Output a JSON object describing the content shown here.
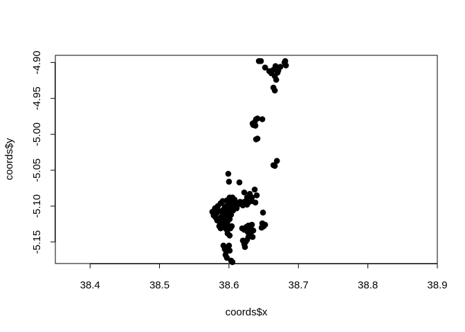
{
  "chart_data": {
    "type": "scatter",
    "title": "",
    "xlabel": "coords$x",
    "ylabel": "coords$y",
    "xlim": [
      38.35,
      38.9
    ],
    "ylim": [
      -5.18,
      -4.89
    ],
    "grid": false,
    "legend": "none",
    "point_color": "#000000",
    "x_ticks": [
      38.4,
      38.5,
      38.6,
      38.7,
      38.8,
      38.9
    ],
    "x_tick_labels": [
      "38.4",
      "38.5",
      "38.6",
      "38.7",
      "38.8",
      "38.9"
    ],
    "y_ticks": [
      -4.9,
      -4.95,
      -5.0,
      -5.05,
      -5.1,
      -5.15
    ],
    "y_tick_labels": [
      "-4.90",
      "-4.95",
      "-5.00",
      "-5.05",
      "-5.10",
      "-5.15"
    ],
    "series": [
      {
        "points": [
          [
            38.643,
            -4.898
          ],
          [
            38.646,
            -4.898
          ],
          [
            38.652,
            -4.907
          ],
          [
            38.658,
            -4.912
          ],
          [
            38.661,
            -4.915
          ],
          [
            38.664,
            -4.91
          ],
          [
            38.667,
            -4.905
          ],
          [
            38.669,
            -4.908
          ],
          [
            38.671,
            -4.911
          ],
          [
            38.674,
            -4.906
          ],
          [
            38.67,
            -4.914
          ],
          [
            38.666,
            -4.919
          ],
          [
            38.668,
            -4.924
          ],
          [
            38.664,
            -4.935
          ],
          [
            38.666,
            -4.939
          ],
          [
            38.68,
            -4.9
          ],
          [
            38.682,
            -4.904
          ],
          [
            38.681,
            -4.898
          ],
          [
            38.634,
            -4.985
          ],
          [
            38.636,
            -4.986
          ],
          [
            38.637,
            -4.983
          ],
          [
            38.639,
            -4.979
          ],
          [
            38.641,
            -4.978
          ],
          [
            38.638,
            -4.988
          ],
          [
            38.635,
            -4.987
          ],
          [
            38.648,
            -4.979
          ],
          [
            38.639,
            -5.007
          ],
          [
            38.641,
            -5.006
          ],
          [
            38.664,
            -5.043
          ],
          [
            38.666,
            -5.044
          ],
          [
            38.669,
            -5.037
          ],
          [
            38.599,
            -5.055
          ],
          [
            38.6,
            -5.066
          ],
          [
            38.615,
            -5.067
          ],
          [
            38.622,
            -5.081
          ],
          [
            38.63,
            -5.083
          ],
          [
            38.637,
            -5.077
          ],
          [
            38.633,
            -5.088
          ],
          [
            38.626,
            -5.088
          ],
          [
            38.633,
            -5.093
          ],
          [
            38.638,
            -5.095
          ],
          [
            38.64,
            -5.085
          ],
          [
            38.649,
            -5.109
          ],
          [
            38.576,
            -5.108
          ],
          [
            38.578,
            -5.113
          ],
          [
            38.58,
            -5.103
          ],
          [
            38.582,
            -5.11
          ],
          [
            38.584,
            -5.1
          ],
          [
            38.586,
            -5.107
          ],
          [
            38.588,
            -5.096
          ],
          [
            38.589,
            -5.115
          ],
          [
            38.591,
            -5.093
          ],
          [
            38.592,
            -5.105
          ],
          [
            38.594,
            -5.11
          ],
          [
            38.596,
            -5.1
          ],
          [
            38.597,
            -5.092
          ],
          [
            38.599,
            -5.097
          ],
          [
            38.6,
            -5.105
          ],
          [
            38.601,
            -5.088
          ],
          [
            38.602,
            -5.094
          ],
          [
            38.604,
            -5.1
          ],
          [
            38.605,
            -5.088
          ],
          [
            38.606,
            -5.096
          ],
          [
            38.608,
            -5.091
          ],
          [
            38.61,
            -5.095
          ],
          [
            38.612,
            -5.099
          ],
          [
            38.614,
            -5.096
          ],
          [
            38.616,
            -5.094
          ],
          [
            38.618,
            -5.097
          ],
          [
            38.62,
            -5.099
          ],
          [
            38.622,
            -5.094
          ],
          [
            38.624,
            -5.096
          ],
          [
            38.626,
            -5.098
          ],
          [
            38.628,
            -5.095
          ],
          [
            38.583,
            -5.12
          ],
          [
            38.585,
            -5.118
          ],
          [
            38.587,
            -5.123
          ],
          [
            38.59,
            -5.12
          ],
          [
            38.593,
            -5.117
          ],
          [
            38.595,
            -5.125
          ],
          [
            38.598,
            -5.121
          ],
          [
            38.601,
            -5.118
          ],
          [
            38.603,
            -5.112
          ],
          [
            38.606,
            -5.106
          ],
          [
            38.608,
            -5.102
          ],
          [
            38.581,
            -5.116
          ],
          [
            38.579,
            -5.106
          ],
          [
            38.59,
            -5.108
          ],
          [
            38.594,
            -5.101
          ],
          [
            38.597,
            -5.112
          ],
          [
            38.599,
            -5.115
          ],
          [
            38.603,
            -5.099
          ],
          [
            38.611,
            -5.103
          ],
          [
            38.586,
            -5.128
          ],
          [
            38.588,
            -5.131
          ],
          [
            38.592,
            -5.129
          ],
          [
            38.596,
            -5.132
          ],
          [
            38.599,
            -5.127
          ],
          [
            38.602,
            -5.131
          ],
          [
            38.604,
            -5.128
          ],
          [
            38.598,
            -5.138
          ],
          [
            38.601,
            -5.141
          ],
          [
            38.592,
            -5.155
          ],
          [
            38.594,
            -5.16
          ],
          [
            38.596,
            -5.163
          ],
          [
            38.598,
            -5.158
          ],
          [
            38.6,
            -5.155
          ],
          [
            38.601,
            -5.162
          ],
          [
            38.595,
            -5.168
          ],
          [
            38.597,
            -5.172
          ],
          [
            38.603,
            -5.176
          ],
          [
            38.605,
            -5.178
          ],
          [
            38.619,
            -5.131
          ],
          [
            38.622,
            -5.133
          ],
          [
            38.625,
            -5.129
          ],
          [
            38.628,
            -5.127
          ],
          [
            38.631,
            -5.13
          ],
          [
            38.633,
            -5.126
          ],
          [
            38.635,
            -5.134
          ],
          [
            38.63,
            -5.14
          ],
          [
            38.628,
            -5.143
          ],
          [
            38.626,
            -5.147
          ],
          [
            38.624,
            -5.15
          ],
          [
            38.622,
            -5.153
          ],
          [
            38.62,
            -5.148
          ],
          [
            38.623,
            -5.157
          ],
          [
            38.632,
            -5.136
          ],
          [
            38.634,
            -5.143
          ],
          [
            38.627,
            -5.136
          ],
          [
            38.648,
            -5.124
          ],
          [
            38.65,
            -5.128
          ],
          [
            38.652,
            -5.126
          ],
          [
            38.647,
            -5.13
          ]
        ]
      }
    ]
  }
}
